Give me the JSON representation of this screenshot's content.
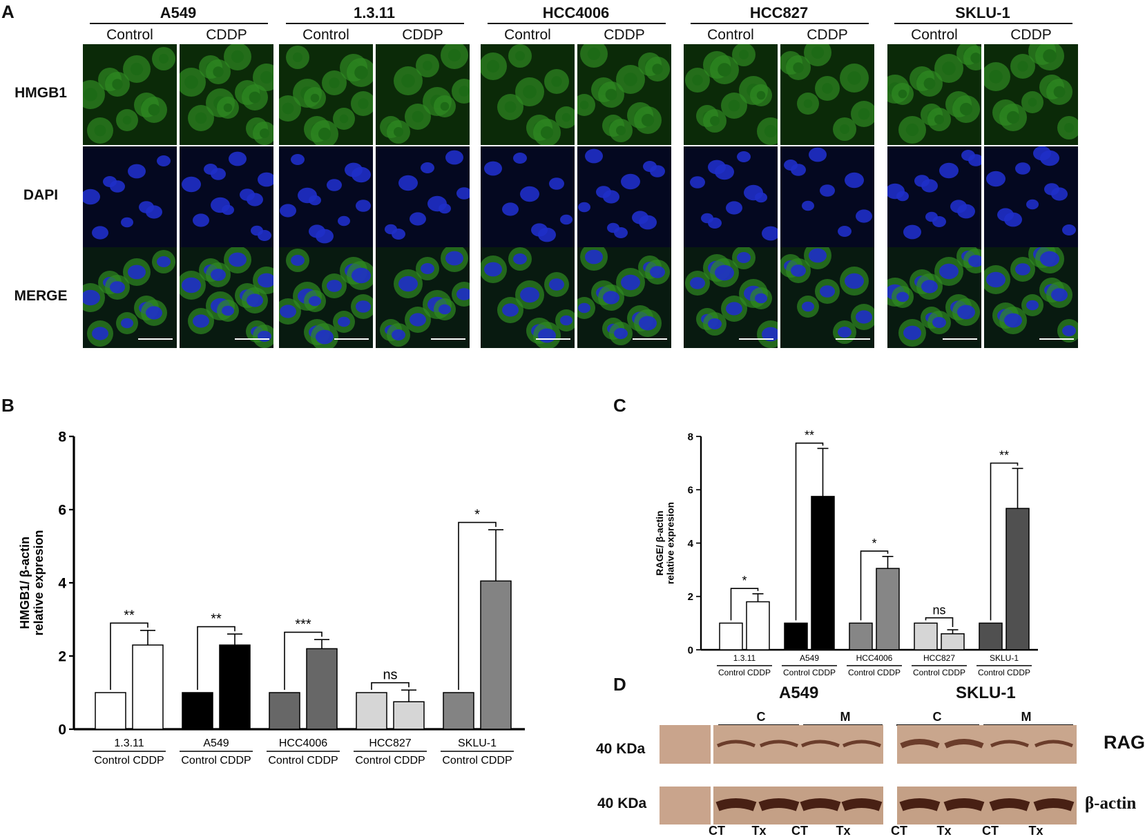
{
  "panel_a": {
    "letter": "A",
    "cell_lines": [
      "A549",
      "1.3.11",
      "HCC4006",
      "HCC827",
      "SKLU-1"
    ],
    "conditions": [
      "Control",
      "CDDP"
    ],
    "rows": [
      "HMGB1",
      "DAPI",
      "MERGE"
    ]
  },
  "panel_b": {
    "letter": "B"
  },
  "panel_c": {
    "letter": "C"
  },
  "panel_d": {
    "letter": "D",
    "groups": [
      "A549",
      "SKLU-1"
    ],
    "fractions": [
      "C",
      "M"
    ],
    "bands": [
      {
        "kda": "40 KDa",
        "name": "RAGE"
      },
      {
        "kda": "40 KDa",
        "name": "β-actin"
      }
    ],
    "lanes": [
      "CT",
      "Tx",
      "CT",
      "Tx",
      "CT",
      "Tx",
      "CT",
      "Tx"
    ]
  },
  "chart_data": [
    {
      "type": "bar",
      "panel": "B",
      "ylabel_line1": "HMGB1/ β-actin",
      "ylabel_line2": "relative expresion",
      "ylim": [
        0,
        8
      ],
      "yticks": [
        "0",
        "2",
        "4",
        "6",
        "8"
      ],
      "groups": [
        "1.3.11",
        "A549",
        "HCC4006",
        "HCC827",
        "SKLU-1"
      ],
      "sub_label": "Control CDDP",
      "bars": [
        {
          "group": "1.3.11",
          "condition": "Control",
          "value": 1.0,
          "error": 0,
          "color": "#ffffff"
        },
        {
          "group": "1.3.11",
          "condition": "CDDP",
          "value": 2.3,
          "error": 0.4,
          "color": "#ffffff"
        },
        {
          "group": "A549",
          "condition": "Control",
          "value": 1.0,
          "error": 0,
          "color": "#000000"
        },
        {
          "group": "A549",
          "condition": "CDDP",
          "value": 2.3,
          "error": 0.3,
          "color": "#000000"
        },
        {
          "group": "HCC4006",
          "condition": "Control",
          "value": 1.0,
          "error": 0,
          "color": "#676767"
        },
        {
          "group": "HCC4006",
          "condition": "CDDP",
          "value": 2.2,
          "error": 0.25,
          "color": "#676767"
        },
        {
          "group": "HCC827",
          "condition": "Control",
          "value": 1.0,
          "error": 0,
          "color": "#d6d6d6"
        },
        {
          "group": "HCC827",
          "condition": "CDDP",
          "value": 0.75,
          "error": 0.32,
          "color": "#d6d6d6"
        },
        {
          "group": "SKLU-1",
          "condition": "Control",
          "value": 1.0,
          "error": 0,
          "color": "#838383"
        },
        {
          "group": "SKLU-1",
          "condition": "CDDP",
          "value": 4.05,
          "error": 1.4,
          "color": "#838383"
        }
      ],
      "significance": [
        "**",
        "**",
        "***",
        "ns",
        "*"
      ]
    },
    {
      "type": "bar",
      "panel": "C",
      "ylabel_line1": "RAGE/ β-actin",
      "ylabel_line2": "relative expresion",
      "ylim": [
        0,
        8
      ],
      "yticks": [
        "0",
        "2",
        "4",
        "6",
        "8"
      ],
      "groups": [
        "1.3.11",
        "A549",
        "HCC4006",
        "HCC827",
        "SKLU-1"
      ],
      "sub_label": "Control CDDP",
      "bars": [
        {
          "group": "1.3.11",
          "condition": "Control",
          "value": 1.0,
          "error": 0,
          "color": "#ffffff"
        },
        {
          "group": "1.3.11",
          "condition": "CDDP",
          "value": 1.8,
          "error": 0.3,
          "color": "#ffffff"
        },
        {
          "group": "A549",
          "condition": "Control",
          "value": 1.0,
          "error": 0,
          "color": "#000000"
        },
        {
          "group": "A549",
          "condition": "CDDP",
          "value": 5.75,
          "error": 1.8,
          "color": "#000000"
        },
        {
          "group": "HCC4006",
          "condition": "Control",
          "value": 1.0,
          "error": 0,
          "color": "#868686"
        },
        {
          "group": "HCC4006",
          "condition": "CDDP",
          "value": 3.05,
          "error": 0.45,
          "color": "#868686"
        },
        {
          "group": "HCC827",
          "condition": "Control",
          "value": 1.0,
          "error": 0,
          "color": "#d6d6d6"
        },
        {
          "group": "HCC827",
          "condition": "CDDP",
          "value": 0.6,
          "error": 0.15,
          "color": "#d6d6d6"
        },
        {
          "group": "SKLU-1",
          "condition": "Control",
          "value": 1.0,
          "error": 0,
          "color": "#505050"
        },
        {
          "group": "SKLU-1",
          "condition": "CDDP",
          "value": 5.3,
          "error": 1.5,
          "color": "#505050"
        }
      ],
      "significance": [
        "*",
        "**",
        "*",
        "ns",
        "**"
      ]
    }
  ]
}
